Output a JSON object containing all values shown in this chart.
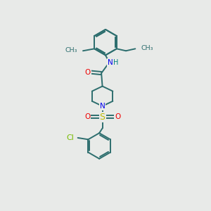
{
  "bg_color": "#e8eae8",
  "bond_color": "#2d6e6e",
  "bond_width": 1.4,
  "N_color": "#0000ee",
  "O_color": "#ee0000",
  "S_color": "#bbbb00",
  "Cl_color": "#77bb00",
  "H_color": "#008080",
  "font_size": 7.5,
  "figsize": [
    3.0,
    3.0
  ],
  "dpi": 100,
  "xlim": [
    0,
    10
  ],
  "ylim": [
    0,
    10
  ]
}
